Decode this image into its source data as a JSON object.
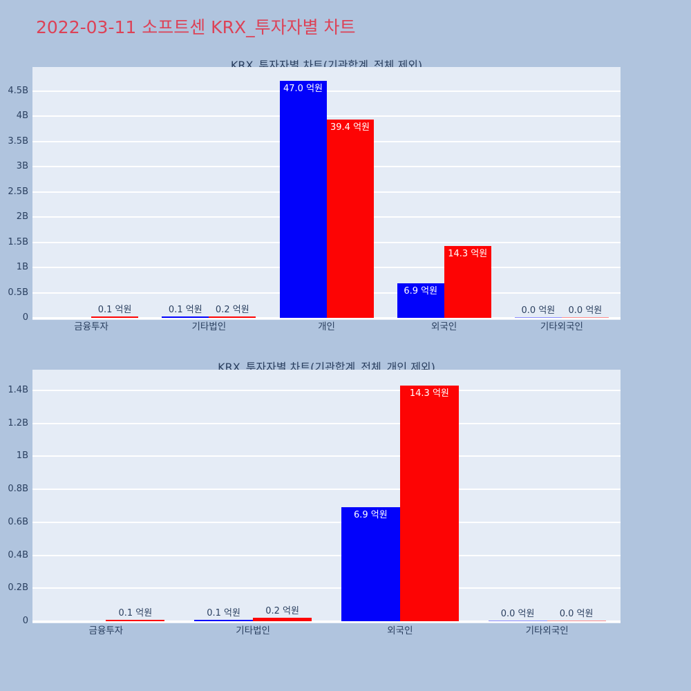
{
  "page": {
    "title": "2022-03-11 소프트센 KRX_투자자별 차트",
    "title_color": "#dc4257",
    "background_color": "#b0c4de"
  },
  "chart_data": [
    {
      "type": "bar",
      "title": "KRX_투자자별 차트(기관합계_전체 제외)",
      "unit": "억원",
      "legend": "none",
      "grid": true,
      "plot_bg": "#e5ecf6",
      "grid_color": "#ffffff",
      "text_color": "#2a3f5f",
      "categories": [
        "금융투자",
        "기타법인",
        "개인",
        "외국인",
        "기타외국인"
      ],
      "series": [
        {
          "name": "blue",
          "color": "#0202fb",
          "values": [
            null,
            0.1,
            47.0,
            6.9,
            0.0
          ],
          "labels": [
            null,
            "0.1 억원",
            "47.0 억원",
            "6.9 억원",
            "0.0 억원"
          ]
        },
        {
          "name": "red",
          "color": "#fd0404",
          "values": [
            0.1,
            0.2,
            39.4,
            14.3,
            0.0
          ],
          "labels": [
            "0.1 억원",
            "0.2 억원",
            "39.4 억원",
            "14.3 억원",
            "0.0 억원"
          ]
        }
      ],
      "xlabel": "",
      "ylabel": "",
      "ylim_b": [
        0,
        4.98
      ],
      "y_ticks": [
        {
          "value": 0,
          "label": "0"
        },
        {
          "value": 0.5,
          "label": "0.5B"
        },
        {
          "value": 1,
          "label": "1B"
        },
        {
          "value": 1.5,
          "label": "1.5B"
        },
        {
          "value": 2,
          "label": "2B"
        },
        {
          "value": 2.5,
          "label": "2.5B"
        },
        {
          "value": 3,
          "label": "3B"
        },
        {
          "value": 3.5,
          "label": "3.5B"
        },
        {
          "value": 4,
          "label": "4B"
        },
        {
          "value": 4.5,
          "label": "4.5B"
        }
      ]
    },
    {
      "type": "bar",
      "title": "KRX_투자자별 차트(기관합계_전체_개인 제외)",
      "unit": "억원",
      "legend": "none",
      "grid": true,
      "plot_bg": "#e5ecf6",
      "grid_color": "#ffffff",
      "text_color": "#2a3f5f",
      "categories": [
        "금융투자",
        "기타법인",
        "외국인",
        "기타외국인"
      ],
      "series": [
        {
          "name": "blue",
          "color": "#0202fb",
          "values": [
            null,
            0.1,
            6.9,
            0.0
          ],
          "labels": [
            null,
            "0.1 억원",
            "6.9 억원",
            "0.0 억원"
          ]
        },
        {
          "name": "red",
          "color": "#fd0404",
          "values": [
            0.1,
            0.2,
            14.3,
            0.0
          ],
          "labels": [
            "0.1 억원",
            "0.2 억원",
            "14.3 억원",
            "0.0 억원"
          ]
        }
      ],
      "xlabel": "",
      "ylabel": "",
      "ylim_b": [
        0,
        1.526
      ],
      "y_ticks": [
        {
          "value": 0,
          "label": "0"
        },
        {
          "value": 0.2,
          "label": "0.2B"
        },
        {
          "value": 0.4,
          "label": "0.4B"
        },
        {
          "value": 0.6,
          "label": "0.6B"
        },
        {
          "value": 0.8,
          "label": "0.8B"
        },
        {
          "value": 1,
          "label": "1B"
        },
        {
          "value": 1.2,
          "label": "1.2B"
        },
        {
          "value": 1.4,
          "label": "1.4B"
        }
      ]
    }
  ]
}
